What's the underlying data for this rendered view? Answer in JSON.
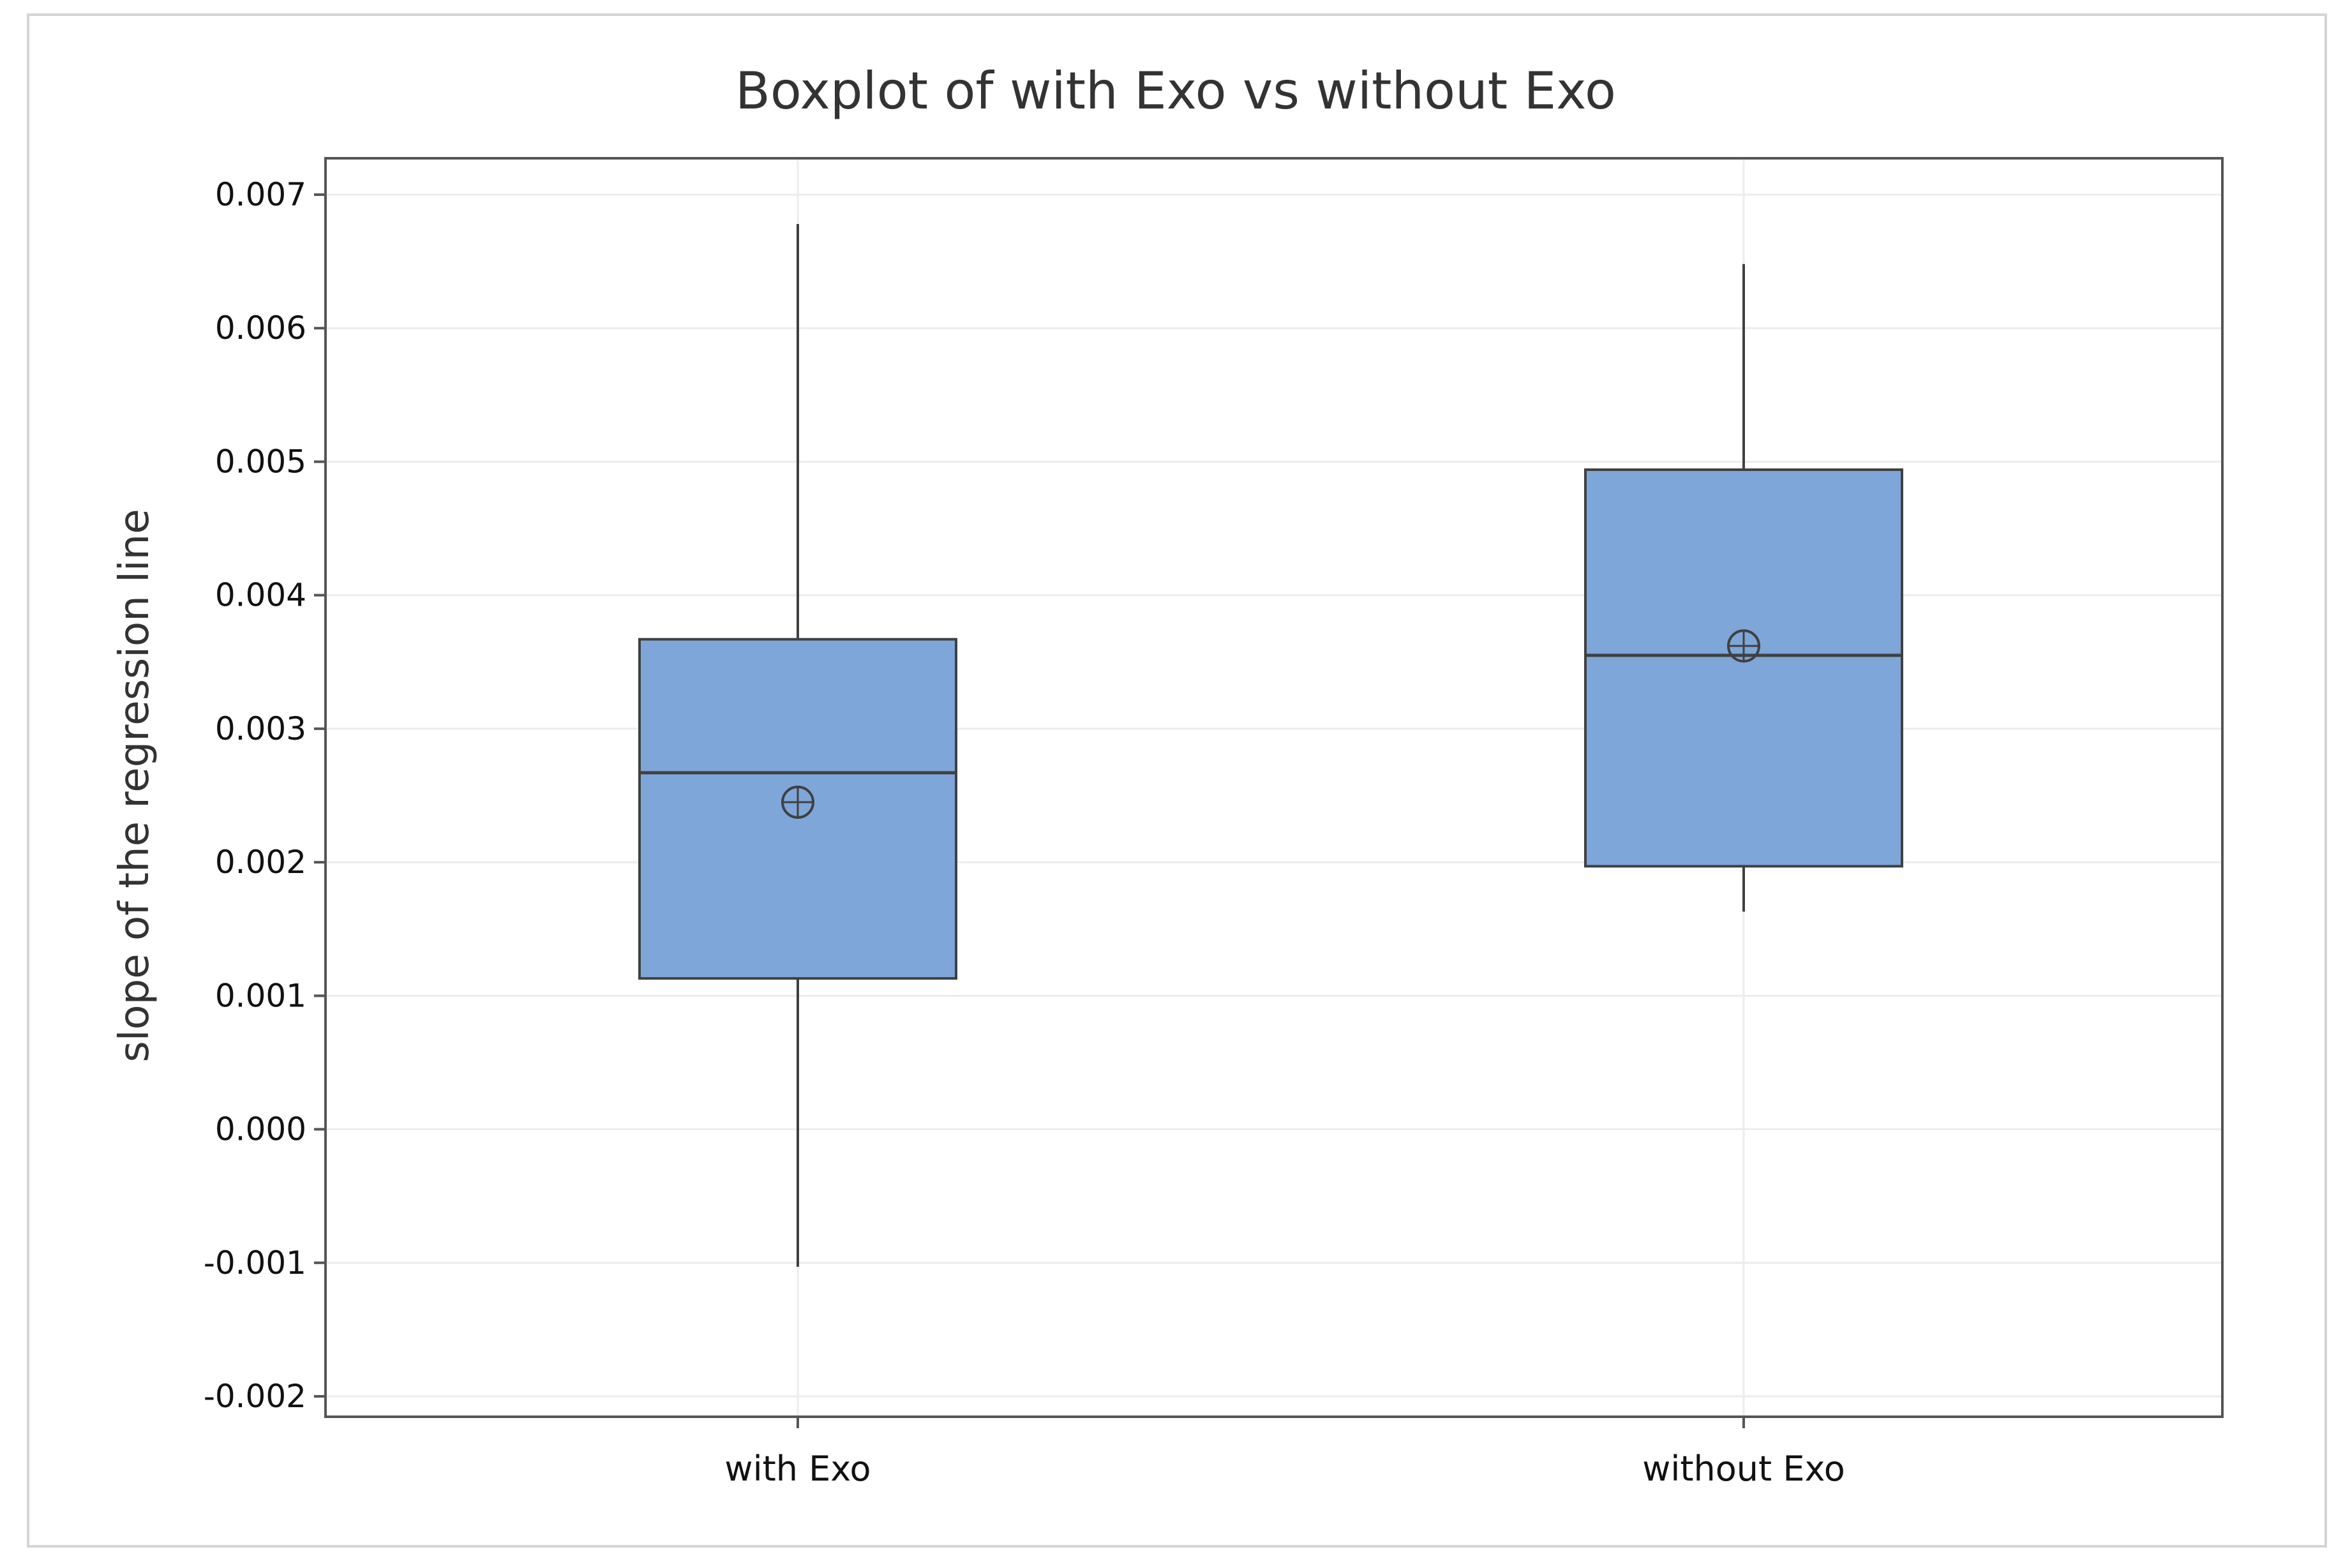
{
  "chart_data": {
    "type": "boxplot",
    "title": "Boxplot of with Exo vs without Exo",
    "xlabel": "",
    "ylabel": "slope of the regression line",
    "ylim": [
      -0.002,
      0.007
    ],
    "yticks": [
      "-0.002",
      "-0.001",
      "0.000",
      "0.001",
      "0.002",
      "0.003",
      "0.004",
      "0.005",
      "0.006",
      "0.007"
    ],
    "ytick_values": [
      -0.002,
      -0.001,
      0.0,
      0.001,
      0.002,
      0.003,
      0.004,
      0.005,
      0.006,
      0.007
    ],
    "categories": [
      "with Exo",
      "without Exo"
    ],
    "boxes": [
      {
        "category": "with Exo",
        "whisker_low": -0.00103,
        "q1": 0.00113,
        "median": 0.00267,
        "q3": 0.00367,
        "whisker_high": 0.00678,
        "mean": 0.00245
      },
      {
        "category": "without Exo",
        "whisker_low": 0.00163,
        "q1": 0.00197,
        "median": 0.00355,
        "q3": 0.00494,
        "whisker_high": 0.00648,
        "mean": 0.00362
      }
    ],
    "grid": true,
    "legend": "none",
    "colors": {
      "box_fill": "#7ea6d8",
      "box_stroke": "#404040",
      "grid": "#ececec",
      "frame": "#555555",
      "outer_border": "#d4d4d4"
    }
  }
}
